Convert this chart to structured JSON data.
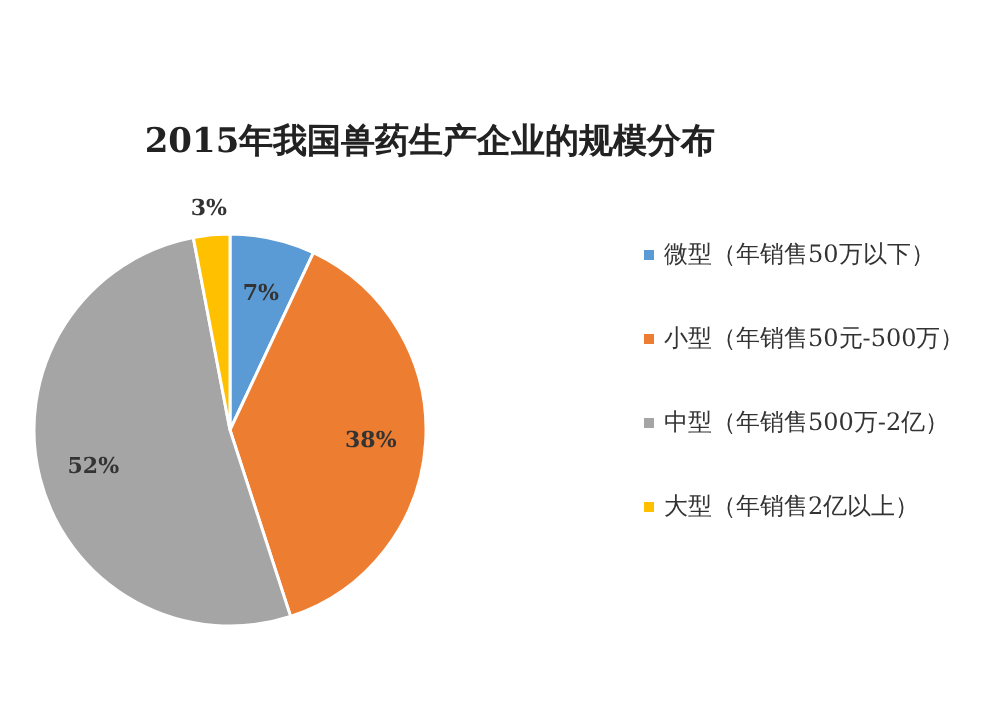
{
  "chart_data": {
    "type": "pie",
    "title": "2015年我国兽药生产企业的规模分布",
    "categories": [
      "微型（年销售50万以下）",
      "小型（年销售50元-500万）",
      "中型（年销售500万-2亿）",
      "大型（年销售2亿以上）"
    ],
    "values": [
      7,
      38,
      52,
      3
    ],
    "colors": [
      "#5b9bd5",
      "#ed7d31",
      "#a5a5a5",
      "#ffc000"
    ],
    "value_labels": [
      "7%",
      "38%",
      "52%",
      "3%"
    ],
    "legend": "right"
  }
}
